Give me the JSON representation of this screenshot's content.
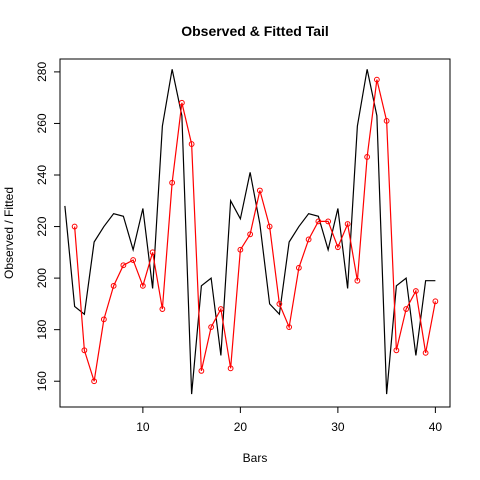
{
  "chart_data": {
    "type": "line",
    "title": "Observed & Fitted Tail",
    "xlabel": "Bars",
    "ylabel": "Observed / Fitted",
    "xlim": [
      1.5,
      41.5
    ],
    "ylim": [
      150,
      285
    ],
    "xticks": [
      10,
      20,
      30,
      40
    ],
    "yticks": [
      160,
      180,
      200,
      220,
      240,
      260,
      280
    ],
    "grid": false,
    "series": [
      {
        "color": "#000000",
        "style": "line",
        "x": [
          2,
          3,
          4,
          5,
          6,
          7,
          8,
          9,
          10,
          11,
          12,
          13,
          14,
          15,
          16,
          17,
          18,
          19,
          20,
          21,
          22,
          23,
          24,
          25,
          26,
          27,
          28,
          29,
          30,
          31,
          32,
          33,
          34,
          35,
          36,
          37,
          38,
          39,
          40
        ],
        "y": [
          228,
          189,
          186,
          214,
          220,
          225,
          224,
          211,
          227,
          196,
          259,
          281,
          263,
          155,
          197,
          200,
          170,
          230,
          223,
          241,
          221,
          190,
          186,
          214,
          220,
          225,
          224,
          211,
          227,
          196,
          259,
          281,
          263,
          155,
          197,
          200,
          170,
          199,
          199
        ]
      },
      {
        "color": "#ff0000",
        "style": "line+points",
        "x": [
          3,
          4,
          5,
          6,
          7,
          8,
          9,
          10,
          11,
          12,
          13,
          14,
          15,
          16,
          17,
          18,
          19,
          20,
          21,
          22,
          23,
          24,
          25,
          26,
          27,
          28,
          29,
          30,
          31,
          32,
          33,
          34,
          35,
          36,
          37,
          38,
          39,
          40
        ],
        "y": [
          220,
          172,
          160,
          184,
          197,
          205,
          207,
          197,
          210,
          188,
          237,
          268,
          252,
          164,
          181,
          188,
          165,
          211,
          217,
          234,
          220,
          190,
          181,
          204,
          215,
          222,
          222,
          212,
          221,
          199,
          247,
          277,
          261,
          172,
          188,
          195,
          171,
          191
        ]
      }
    ]
  }
}
